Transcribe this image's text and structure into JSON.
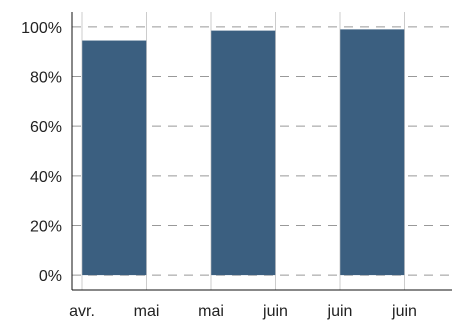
{
  "chart_data": {
    "type": "bar",
    "title": "",
    "xlabel": "",
    "ylabel": "",
    "categories": [
      "avr.",
      "mai",
      "mai",
      "juin",
      "juin",
      "juin"
    ],
    "bars": [
      {
        "position": 0.5,
        "value": 94.5
      },
      {
        "position": 2.5,
        "value": 98.5
      },
      {
        "position": 4.5,
        "value": 99.0
      }
    ],
    "ylim": [
      -6,
      106
    ],
    "y_ticks": [
      0,
      20,
      40,
      60,
      80,
      100
    ],
    "y_tick_format": "percent",
    "grid": {
      "horizontal": "dashed",
      "vertical": "solid"
    },
    "legend": "none",
    "colors": {
      "bar": "#3b5f80",
      "h_grid": "#999999",
      "v_grid": "#cccccc",
      "axis": "#111111"
    }
  }
}
